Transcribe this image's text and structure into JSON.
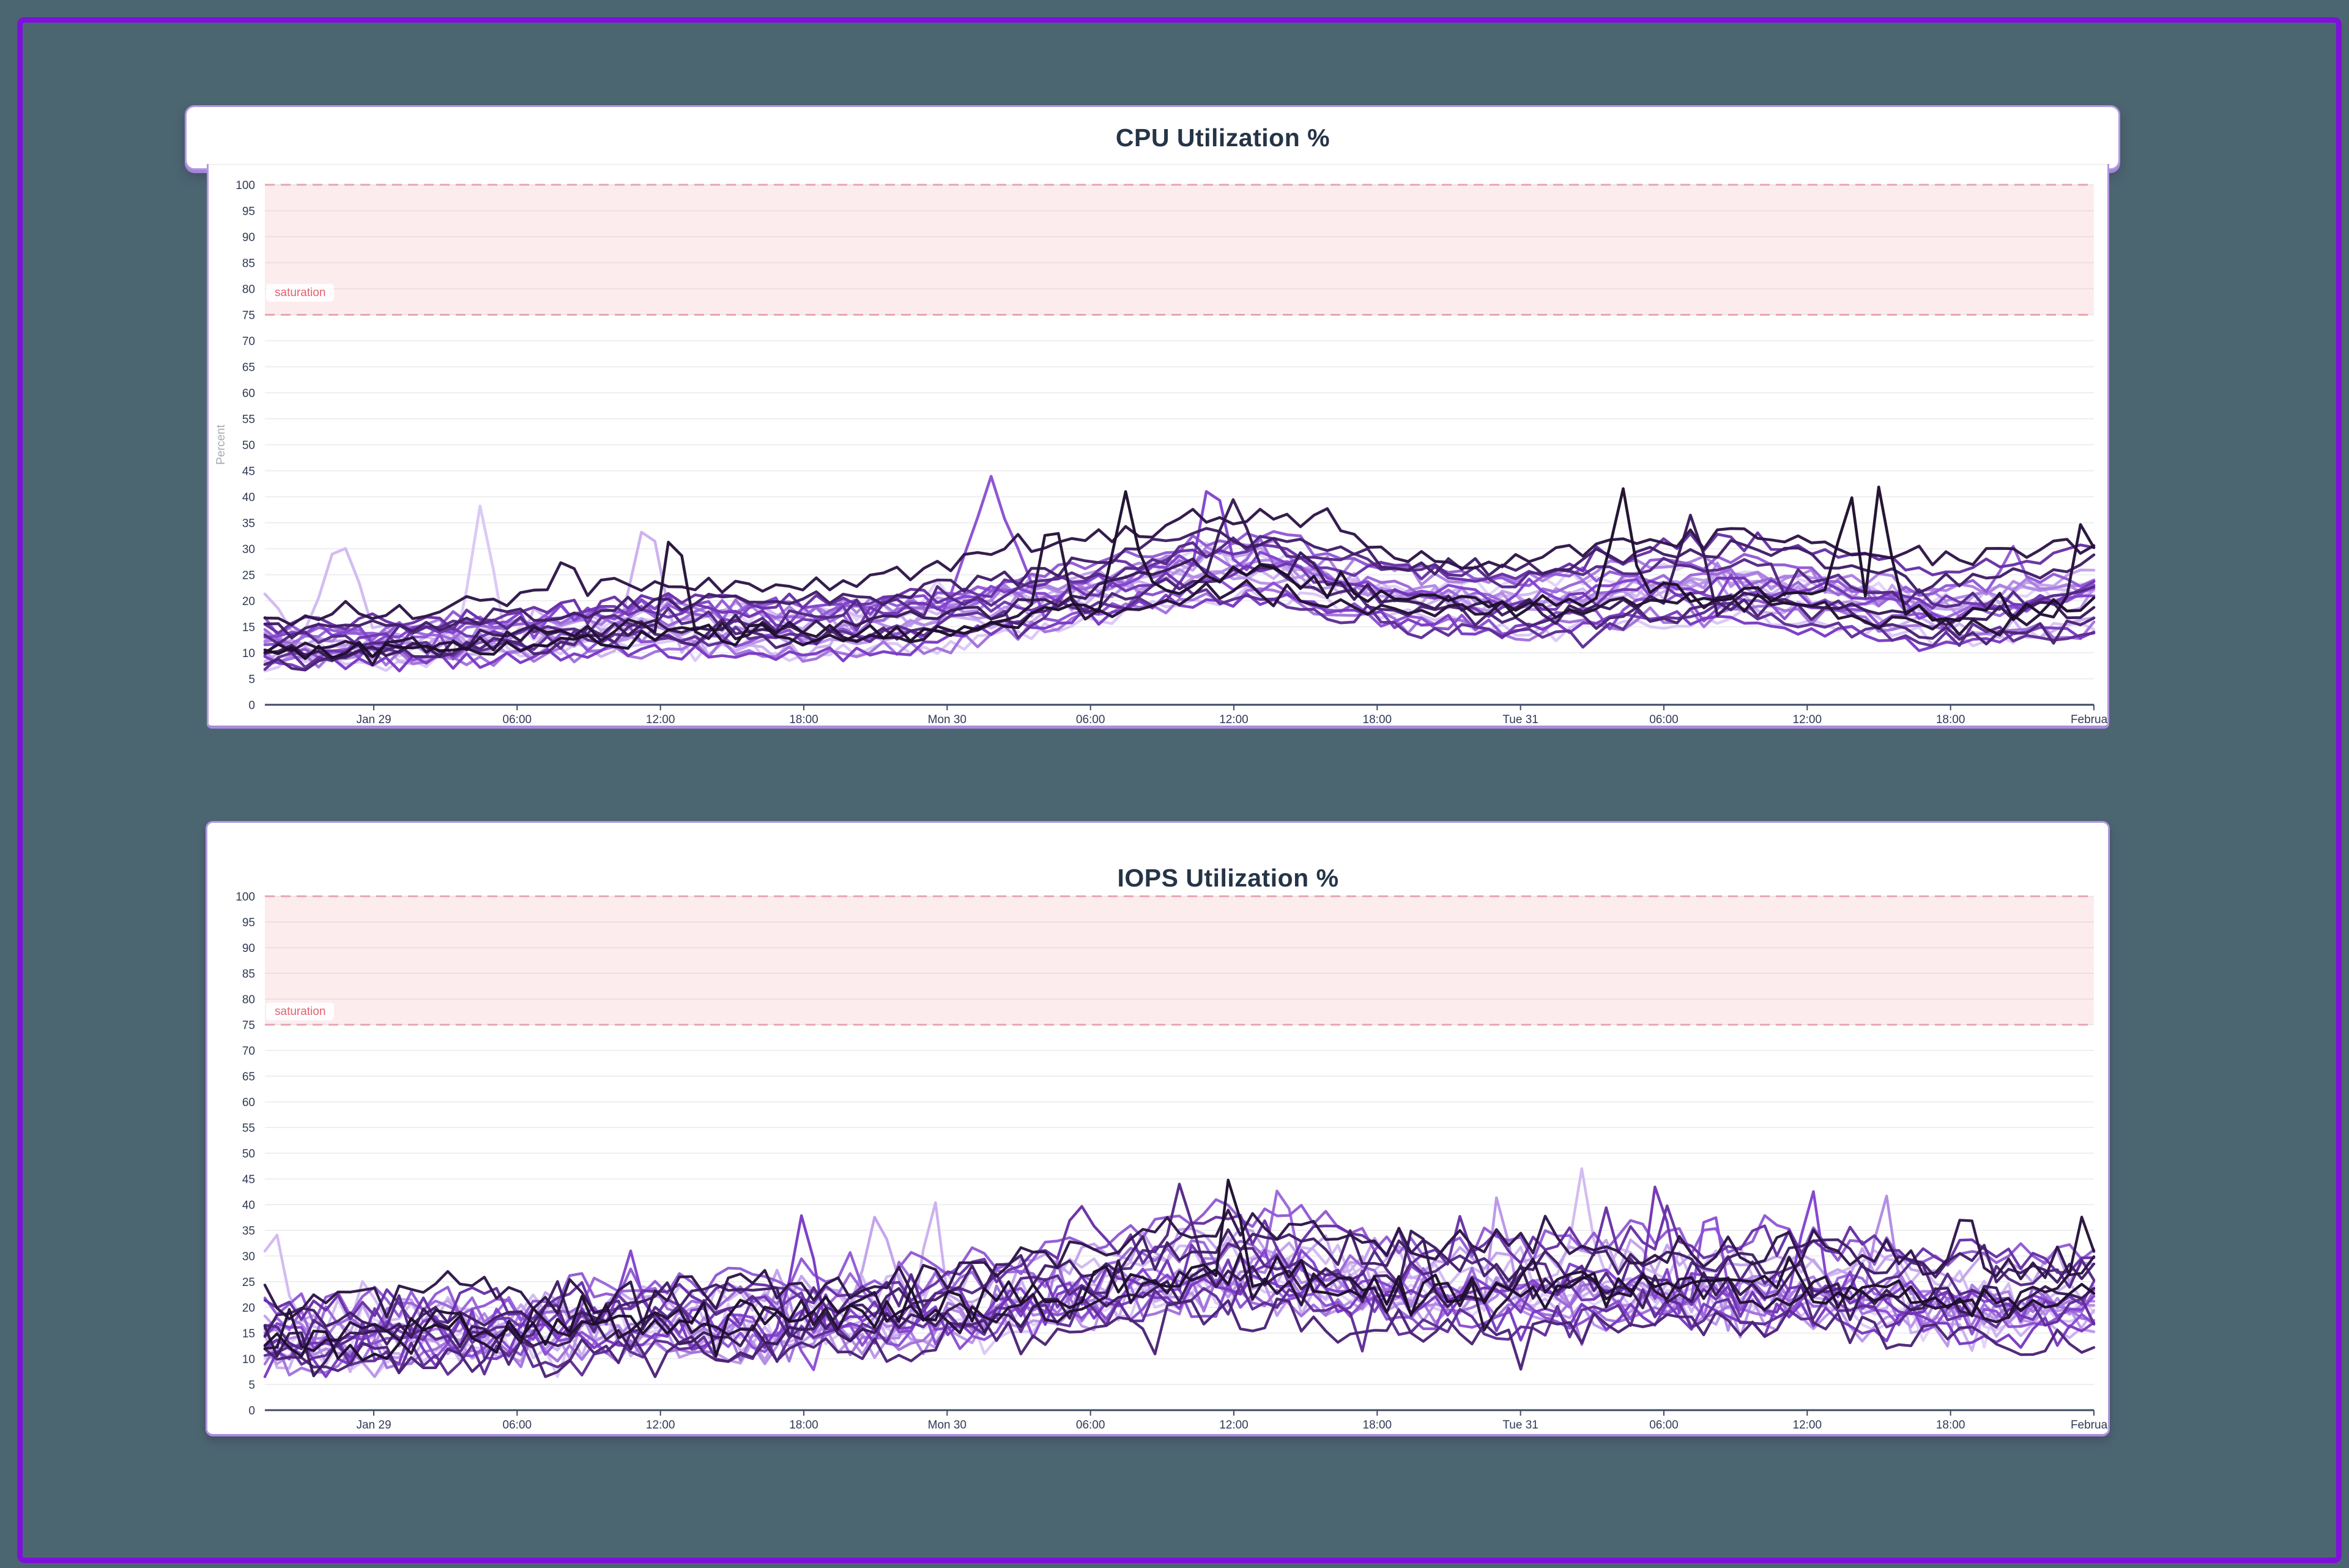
{
  "page": {
    "background_color": "#4c6671",
    "frame_color": "#7f10dc",
    "card_border_color": "#b299de"
  },
  "charts": [
    {
      "title": "CPU Utilization %",
      "y_axis_title": "Percent",
      "band": {
        "label": "saturation",
        "from": 75,
        "to": 100,
        "fill": "#fdecee",
        "line_color": "#f5a8b2",
        "label_color": "#e4606d"
      },
      "chart_data": {
        "type": "line",
        "x_tick_labels": [
          "Jan 29",
          "06:00",
          "12:00",
          "18:00",
          "Mon 30",
          "06:00",
          "12:00",
          "18:00",
          "Tue 31",
          "06:00",
          "12:00",
          "18:00",
          "February"
        ],
        "y_tick_labels": [
          0,
          5,
          10,
          15,
          20,
          25,
          30,
          35,
          40,
          45,
          50,
          55,
          60,
          65,
          70,
          75,
          80,
          85,
          90,
          95,
          100
        ],
        "ylim": [
          0,
          100
        ],
        "grid": true,
        "legend": "none",
        "envelope": [
          [
            0,
            11
          ],
          [
            0.05,
            11.5
          ],
          [
            0.1,
            12
          ],
          [
            0.16,
            14
          ],
          [
            0.21,
            15.5
          ],
          [
            0.27,
            15
          ],
          [
            0.33,
            16
          ],
          [
            0.372,
            17.5
          ],
          [
            0.42,
            20
          ],
          [
            0.47,
            23
          ],
          [
            0.51,
            26
          ],
          [
            0.55,
            26.5
          ],
          [
            0.59,
            23
          ],
          [
            0.63,
            21
          ],
          [
            0.685,
            19.5
          ],
          [
            0.72,
            21
          ],
          [
            0.763,
            22.5
          ],
          [
            0.8,
            23
          ],
          [
            0.842,
            21.5
          ],
          [
            0.88,
            19.5
          ],
          [
            0.92,
            18
          ],
          [
            0.96,
            19
          ],
          [
            1,
            21
          ]
        ],
        "spikes": [
          [
            0.002,
            23,
            2,
            0.012
          ],
          [
            0.041,
            33,
            2,
            0.02
          ],
          [
            0.118,
            39,
            1,
            0.014
          ],
          [
            0.209,
            39,
            3,
            0.016
          ],
          [
            0.164,
            29,
            21,
            0.012
          ],
          [
            0.224,
            39,
            22,
            0.01
          ],
          [
            0.397,
            44,
            11,
            0.028
          ],
          [
            0.43,
            40,
            22,
            0.012
          ],
          [
            0.47,
            42,
            23,
            0.012
          ],
          [
            0.518,
            48,
            12,
            0.009
          ],
          [
            0.53,
            40,
            20,
            0.015
          ],
          [
            0.58,
            38,
            21,
            0.012
          ],
          [
            0.742,
            43,
            23,
            0.012
          ],
          [
            0.78,
            37,
            20,
            0.014
          ],
          [
            0.865,
            50,
            23,
            0.008
          ],
          [
            0.884,
            48,
            23,
            0.008
          ],
          [
            0.955,
            31,
            10,
            0.012
          ],
          [
            0.995,
            39,
            22,
            0.012
          ]
        ],
        "noise_amplitude": 1.8,
        "series_colors": [
          "#e3d3f8",
          "#dbc7f5",
          "#d2baf1",
          "#cbafee",
          "#c2a2ea",
          "#bb96e7",
          "#b28ae3",
          "#ab7fe0",
          "#a272dc",
          "#9b67d9",
          "#925ad5",
          "#8b4fd2",
          "#8243ce",
          "#7a3ac4",
          "#7136b4",
          "#6731a5",
          "#5e2d95",
          "#542886",
          "#4b2476",
          "#411f67",
          "#381b57",
          "#2e1648",
          "#251238",
          "#1d0e2c"
        ],
        "series_seeds": [
          11,
          23,
          35,
          47,
          59,
          61,
          73,
          85,
          97,
          109,
          121,
          133,
          145,
          157,
          169,
          181,
          193,
          205,
          217,
          229,
          241,
          253,
          265,
          277
        ],
        "series_offsets": [
          0.5,
          -1.5,
          1.2,
          -0.8,
          2.0,
          0.0,
          -2.0,
          1.5,
          -1.2,
          0.8,
          2.4,
          -0.5,
          1.0,
          -1.8,
          0.3,
          2.8,
          -1.0,
          0.6,
          -2.3,
          1.8,
          -0.2,
          3.2,
          0.9,
          -1.4
        ],
        "series_scales": [
          1.0,
          0.9,
          1.1,
          0.95,
          1.05,
          0.85,
          1.15,
          1.0,
          0.9,
          1.1,
          1.2,
          0.95,
          1.05,
          0.9,
          1.0,
          1.15,
          0.85,
          1.05,
          0.95,
          1.1,
          1.0,
          1.25,
          0.9,
          1.05
        ]
      }
    },
    {
      "title": "IOPS Utilization %",
      "y_axis_title": "",
      "band": {
        "label": "saturation",
        "from": 75,
        "to": 100,
        "fill": "#fdecee",
        "line_color": "#f5a8b2",
        "label_color": "#e4606d"
      },
      "chart_data": {
        "type": "line",
        "x_tick_labels": [
          "Jan 29",
          "06:00",
          "12:00",
          "18:00",
          "Mon 30",
          "06:00",
          "12:00",
          "18:00",
          "Tue 31",
          "06:00",
          "12:00",
          "18:00",
          "February"
        ],
        "y_tick_labels": [
          0,
          5,
          10,
          15,
          20,
          25,
          30,
          35,
          40,
          45,
          50,
          55,
          60,
          65,
          70,
          75,
          80,
          85,
          90,
          95,
          100
        ],
        "ylim": [
          0,
          100
        ],
        "grid": true,
        "legend": "none",
        "envelope": [
          [
            0,
            13
          ],
          [
            0.05,
            13.5
          ],
          [
            0.1,
            14
          ],
          [
            0.16,
            15
          ],
          [
            0.21,
            16
          ],
          [
            0.27,
            16.5
          ],
          [
            0.33,
            17.5
          ],
          [
            0.372,
            18.5
          ],
          [
            0.42,
            21
          ],
          [
            0.47,
            24
          ],
          [
            0.51,
            26
          ],
          [
            0.55,
            25.5
          ],
          [
            0.59,
            24
          ],
          [
            0.63,
            22.5
          ],
          [
            0.685,
            22
          ],
          [
            0.72,
            22.5
          ],
          [
            0.763,
            23
          ],
          [
            0.8,
            22.5
          ],
          [
            0.842,
            23
          ],
          [
            0.88,
            22
          ],
          [
            0.92,
            21
          ],
          [
            0.96,
            20
          ],
          [
            1,
            21.5
          ]
        ],
        "spikes": [
          [
            0.004,
            38,
            2,
            0.012
          ],
          [
            0.1,
            27,
            21,
            0.012
          ],
          [
            0.2,
            31,
            12,
            0.012
          ],
          [
            0.295,
            41,
            13,
            0.012
          ],
          [
            0.335,
            40,
            4,
            0.012
          ],
          [
            0.365,
            45,
            3,
            0.01
          ],
          [
            0.445,
            41,
            15,
            0.012
          ],
          [
            0.5,
            44,
            17,
            0.012
          ],
          [
            0.528,
            48,
            23,
            0.009
          ],
          [
            0.555,
            45,
            9,
            0.012
          ],
          [
            0.63,
            40,
            20,
            0.012
          ],
          [
            0.675,
            46,
            5,
            0.01
          ],
          [
            0.72,
            47,
            2,
            0.01
          ],
          [
            0.762,
            48,
            14,
            0.01
          ],
          [
            0.79,
            44,
            11,
            0.012
          ],
          [
            0.845,
            46,
            12,
            0.01
          ],
          [
            0.885,
            45,
            6,
            0.012
          ],
          [
            0.93,
            40,
            21,
            0.012
          ],
          [
            0.995,
            40,
            22,
            0.012
          ]
        ],
        "noise_amplitude": 3.4,
        "series_colors": [
          "#e3d3f8",
          "#dbc7f5",
          "#d2baf1",
          "#cbafee",
          "#c2a2ea",
          "#bb96e7",
          "#b28ae3",
          "#ab7fe0",
          "#a272dc",
          "#9b67d9",
          "#925ad5",
          "#8b4fd2",
          "#8243ce",
          "#7a3ac4",
          "#7136b4",
          "#6731a5",
          "#5e2d95",
          "#542886",
          "#4b2476",
          "#411f67",
          "#381b57",
          "#2e1648",
          "#251238",
          "#1d0e2c"
        ],
        "series_seeds": [
          311,
          323,
          335,
          347,
          359,
          361,
          373,
          385,
          397,
          409,
          421,
          433,
          445,
          457,
          469,
          481,
          493,
          505,
          517,
          529,
          541,
          553,
          565,
          577
        ],
        "series_offsets": [
          1.0,
          -2.0,
          2.0,
          -1.0,
          3.0,
          0.0,
          -2.5,
          2.2,
          -1.5,
          1.2,
          3.5,
          -0.5,
          1.5,
          -2.2,
          0.5,
          4.0,
          -1.2,
          0.8,
          -3.0,
          2.5,
          0.0,
          4.2,
          1.2,
          -1.8
        ],
        "series_scales": [
          1.0,
          0.92,
          1.12,
          0.96,
          1.06,
          0.86,
          1.16,
          1.02,
          0.9,
          1.1,
          1.22,
          0.95,
          1.05,
          0.9,
          1.0,
          1.15,
          0.85,
          1.05,
          0.95,
          1.12,
          1.0,
          1.28,
          0.92,
          1.06
        ]
      }
    }
  ]
}
